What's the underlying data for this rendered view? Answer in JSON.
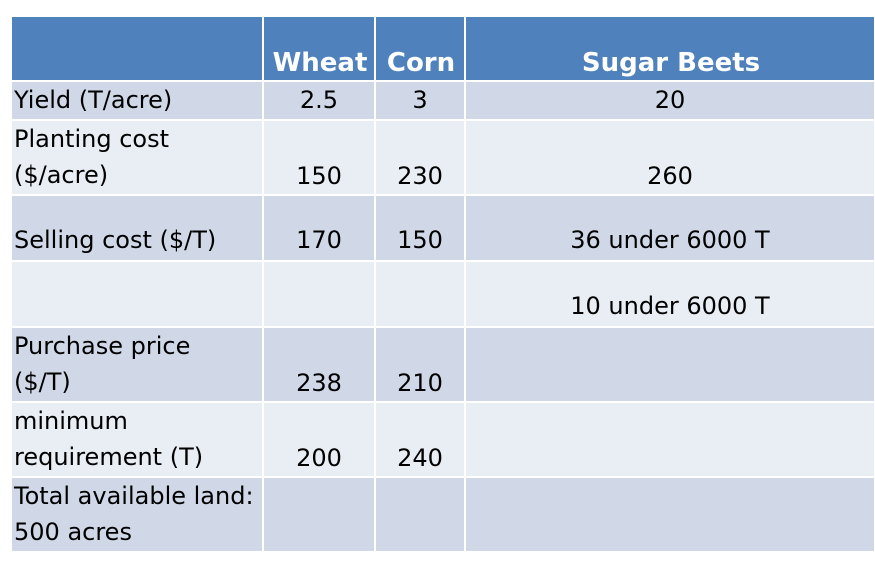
{
  "table": {
    "headers": [
      "",
      "Wheat",
      "Corn",
      "Sugar Beets"
    ],
    "rows": [
      {
        "label": "Yield (T/acre)",
        "wheat": "2.5",
        "corn": "3",
        "beets": "20"
      },
      {
        "label_line1": "Planting cost",
        "label_line2": "($/acre)",
        "wheat": "150",
        "corn": "230",
        "beets": "260"
      },
      {
        "label": "Selling cost ($/T)",
        "wheat": "170",
        "corn": "150",
        "beets": "36 under 6000 T"
      },
      {
        "label": "",
        "wheat": "",
        "corn": "",
        "beets": "10 under 6000 T"
      },
      {
        "label_line1": "Purchase price",
        "label_line2": "($/T)",
        "wheat": "238",
        "corn": "210",
        "beets": ""
      },
      {
        "label_line1": "minimum",
        "label_line2": "requirement (T)",
        "wheat": "200",
        "corn": "240",
        "beets": ""
      },
      {
        "label_line1": "Total available land:",
        "label_line2": "500 acres",
        "wheat": "",
        "corn": "",
        "beets": ""
      }
    ]
  },
  "colors": {
    "header": "#4f81bd",
    "row_dark": "#d0d8e8",
    "row_light": "#e9edf4",
    "grid": "#ffffff"
  }
}
